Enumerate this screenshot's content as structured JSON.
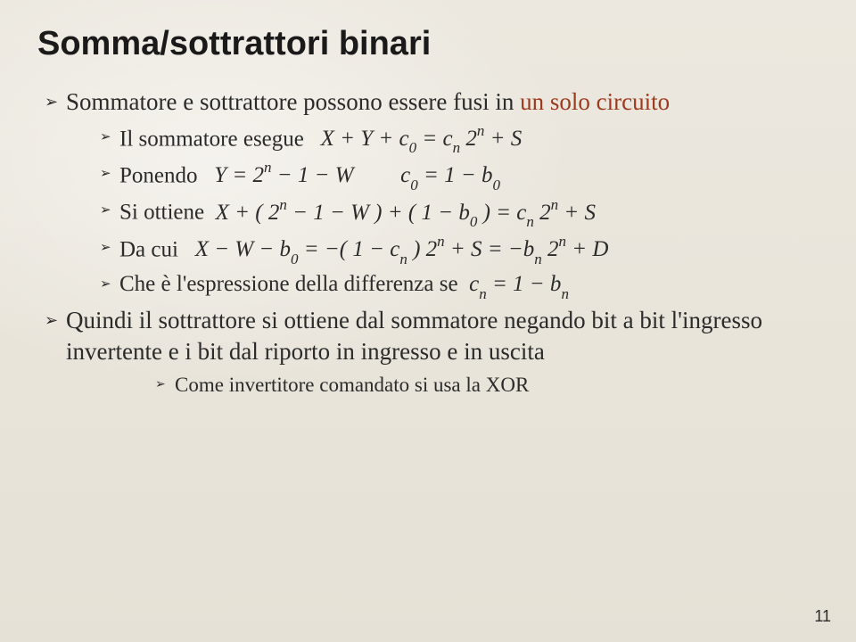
{
  "title": "Somma/sottrattori binari",
  "b1_a": "Sommatore e sottrattore possono essere fusi in ",
  "b1_accent": "un solo circuito",
  "b2_label": "Il sommatore esegue",
  "eq1": "X + Y + c<sub>0</sub> = c<sub>n</sub> 2<sup>n</sup> + S",
  "b3_label": "Ponendo",
  "eq2a": "Y = 2<sup>n</sup> &minus; 1 &minus; W",
  "eq2b": "c<sub>0</sub> = 1 &minus; b<sub>0</sub>",
  "b4_label": "Si ottiene",
  "eq3": "X + ( 2<sup>n</sup> &minus; 1 &minus; W ) + ( 1 &minus; b<sub>0</sub> ) = c<sub>n</sub> 2<sup>n</sup> + S",
  "b5_label": "Da cui",
  "eq4": "X &minus; W &minus; b<sub>0</sub> = &minus;( 1 &minus; c<sub>n</sub> ) 2<sup>n</sup> + S = &minus;b<sub>n</sub> 2<sup>n</sup> + D",
  "b6_label": "Che è l'espressione della differenza se",
  "eq5": "c<sub>n</sub> = 1 &minus; b<sub>n</sub>",
  "b7": "Quindi il sottrattore si ottiene dal sommatore negando bit a bit l'ingresso invertente e i bit dal riporto in ingresso e in uscita",
  "b8": "Come invertitore comandato si usa la XOR",
  "page_number": "11",
  "colors": {
    "accent": "#9c3a1e",
    "text": "#2b2b2b",
    "background": "#eeeae1"
  },
  "fonts": {
    "title_family": "Arial",
    "title_size_pt": 29,
    "body_family": "Georgia",
    "body_size_pt": 20
  }
}
